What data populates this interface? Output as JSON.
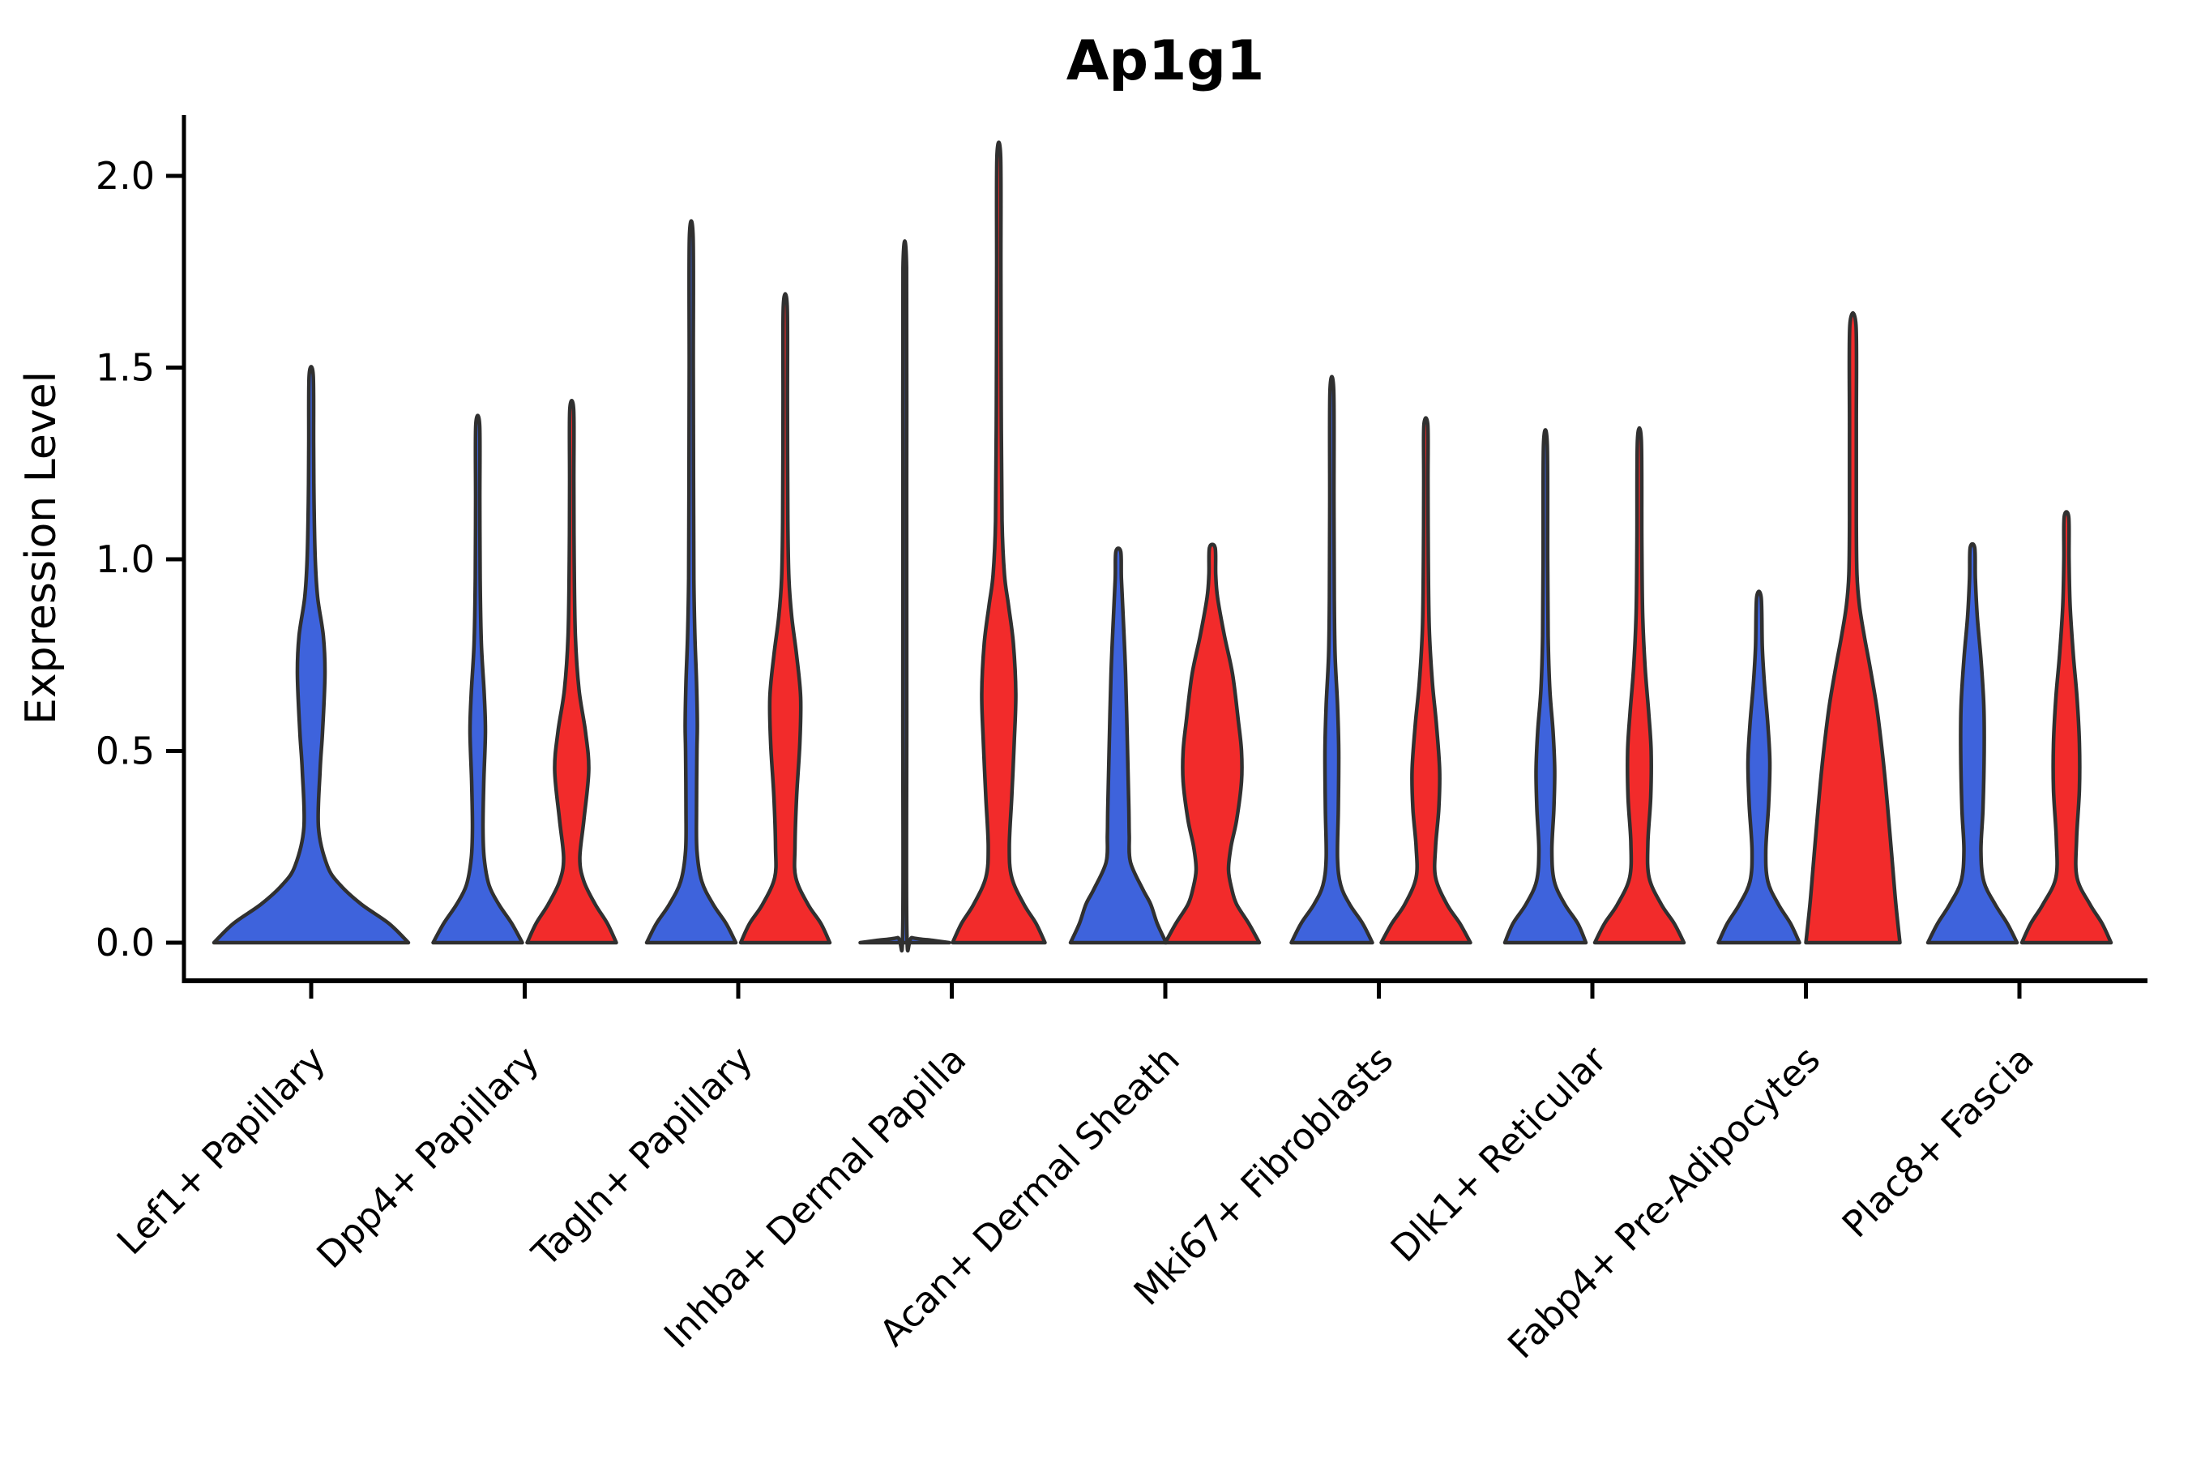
{
  "title": "Ap1g1",
  "axes": {
    "ylabel": "Expression Level"
  },
  "chart_data": {
    "type": "violin",
    "title": "Ap1g1",
    "xlabel": "",
    "ylabel": "Expression Level",
    "ylim": [
      -0.1,
      2.16
    ],
    "grid": false,
    "legend_position": "none",
    "yticks": [
      0.0,
      0.5,
      1.0,
      1.5,
      2.0
    ],
    "ytick_labels": [
      "0.0",
      "0.5",
      "1.0",
      "1.5",
      "2.0"
    ],
    "categories": [
      "Lef1+ Papillary",
      "Dpp4+ Papillary",
      "Tagln+ Papillary",
      "Inhba+ Dermal Papilla",
      "Acan+ Dermal Sheath",
      "Mki67+ Fibroblasts",
      "Dlk1+ Reticular",
      "Fabp4+ Pre-Adipocytes",
      "Plac8+ Fascia"
    ],
    "series": [
      {
        "id": "blue",
        "color": "#3E63DC"
      },
      {
        "id": "red",
        "color": "#F22B2B"
      }
    ],
    "outline_color": "#303030",
    "max_expression": {
      "blue": [
        1.48,
        1.35,
        1.84,
        1.76,
        1.02,
        1.44,
        1.3,
        0.9,
        1.03
      ],
      "red": [
        null,
        1.39,
        1.66,
        2.05,
        1.03,
        1.35,
        1.31,
        1.61,
        1.11
      ]
    },
    "violins": [
      {
        "category": 0,
        "series": "blue",
        "split": "full",
        "max": 1.48,
        "profile": [
          [
            0,
            120
          ],
          [
            0.05,
            96
          ],
          [
            0.1,
            62
          ],
          [
            0.15,
            36
          ],
          [
            0.2,
            20
          ],
          [
            0.3,
            9
          ],
          [
            0.45,
            11
          ],
          [
            0.55,
            14
          ],
          [
            0.7,
            17
          ],
          [
            0.8,
            15
          ],
          [
            0.9,
            8
          ],
          [
            1.0,
            5
          ],
          [
            1.15,
            3.5
          ],
          [
            1.3,
            3
          ],
          [
            1.48,
            2.5
          ]
        ]
      },
      {
        "category": 1,
        "series": "blue",
        "split": "pair",
        "max": 1.35,
        "profile": [
          [
            0,
            55
          ],
          [
            0.05,
            42
          ],
          [
            0.1,
            26
          ],
          [
            0.15,
            14
          ],
          [
            0.22,
            8
          ],
          [
            0.3,
            6.5
          ],
          [
            0.42,
            7.5
          ],
          [
            0.55,
            9.5
          ],
          [
            0.65,
            8
          ],
          [
            0.78,
            4.5
          ],
          [
            0.95,
            3
          ],
          [
            1.15,
            2.6
          ],
          [
            1.35,
            2.4
          ]
        ]
      },
      {
        "category": 1,
        "series": "red",
        "split": "pair",
        "max": 1.39,
        "profile": [
          [
            0,
            55
          ],
          [
            0.05,
            44
          ],
          [
            0.1,
            29
          ],
          [
            0.16,
            15
          ],
          [
            0.22,
            10
          ],
          [
            0.32,
            15
          ],
          [
            0.45,
            21
          ],
          [
            0.55,
            17
          ],
          [
            0.66,
            9
          ],
          [
            0.8,
            4.5
          ],
          [
            1.0,
            3
          ],
          [
            1.2,
            2.6
          ],
          [
            1.39,
            2.4
          ]
        ]
      },
      {
        "category": 2,
        "series": "blue",
        "split": "pair",
        "max": 1.84,
        "profile": [
          [
            0,
            55
          ],
          [
            0.05,
            43
          ],
          [
            0.1,
            27
          ],
          [
            0.16,
            13
          ],
          [
            0.24,
            7
          ],
          [
            0.35,
            6.5
          ],
          [
            0.5,
            7
          ],
          [
            0.57,
            7.5
          ],
          [
            0.68,
            6.5
          ],
          [
            0.8,
            4.5
          ],
          [
            0.95,
            3.2
          ],
          [
            1.2,
            2.8
          ],
          [
            1.5,
            2.5
          ],
          [
            1.84,
            2.3
          ]
        ]
      },
      {
        "category": 2,
        "series": "red",
        "split": "pair",
        "max": 1.66,
        "profile": [
          [
            0,
            55
          ],
          [
            0.05,
            44
          ],
          [
            0.1,
            28
          ],
          [
            0.17,
            13
          ],
          [
            0.25,
            12
          ],
          [
            0.38,
            14
          ],
          [
            0.52,
            18
          ],
          [
            0.64,
            19
          ],
          [
            0.75,
            14
          ],
          [
            0.85,
            8
          ],
          [
            0.95,
            4.5
          ],
          [
            1.1,
            3.2
          ],
          [
            1.4,
            2.7
          ],
          [
            1.66,
            2.4
          ]
        ]
      },
      {
        "category": 3,
        "series": "blue",
        "split": "pair",
        "max": 1.76,
        "profile": [
          [
            0,
            55
          ],
          [
            0.006,
            34
          ],
          [
            0.013,
            9
          ],
          [
            0.025,
            2.6
          ],
          [
            0.6,
            2.4
          ],
          [
            1.2,
            2.3
          ],
          [
            1.76,
            2.2
          ]
        ]
      },
      {
        "category": 3,
        "series": "red",
        "split": "pair",
        "max": 2.05,
        "profile": [
          [
            0,
            57
          ],
          [
            0.05,
            46
          ],
          [
            0.1,
            31
          ],
          [
            0.17,
            16
          ],
          [
            0.25,
            13
          ],
          [
            0.38,
            16
          ],
          [
            0.52,
            19
          ],
          [
            0.65,
            21
          ],
          [
            0.78,
            18
          ],
          [
            0.88,
            12
          ],
          [
            0.96,
            7
          ],
          [
            1.1,
            4
          ],
          [
            1.4,
            3
          ],
          [
            1.75,
            2.6
          ],
          [
            2.05,
            2.3
          ]
        ]
      },
      {
        "category": 4,
        "series": "blue",
        "split": "pair",
        "max": 1.02,
        "profile": [
          [
            0,
            59
          ],
          [
            0.05,
            48
          ],
          [
            0.1,
            40
          ],
          [
            0.14,
            30
          ],
          [
            0.21,
            15
          ],
          [
            0.28,
            13.5
          ],
          [
            0.35,
            13
          ],
          [
            0.49,
            11.5
          ],
          [
            0.7,
            9
          ],
          [
            0.85,
            6
          ],
          [
            0.95,
            3.8
          ],
          [
            1.02,
            3
          ]
        ]
      },
      {
        "category": 4,
        "series": "red",
        "split": "pair",
        "max": 1.03,
        "profile": [
          [
            0,
            58
          ],
          [
            0.05,
            45
          ],
          [
            0.1,
            30
          ],
          [
            0.14,
            24
          ],
          [
            0.19,
            20
          ],
          [
            0.25,
            23
          ],
          [
            0.32,
            30
          ],
          [
            0.42,
            36
          ],
          [
            0.5,
            36
          ],
          [
            0.58,
            32
          ],
          [
            0.7,
            25
          ],
          [
            0.8,
            15
          ],
          [
            0.9,
            6.5
          ],
          [
            0.96,
            4.2
          ],
          [
            1.03,
            3.5
          ]
        ]
      },
      {
        "category": 5,
        "series": "blue",
        "split": "pair",
        "max": 1.44,
        "profile": [
          [
            0,
            50
          ],
          [
            0.05,
            38
          ],
          [
            0.1,
            22
          ],
          [
            0.15,
            11
          ],
          [
            0.22,
            7
          ],
          [
            0.35,
            8
          ],
          [
            0.5,
            8.5
          ],
          [
            0.62,
            7
          ],
          [
            0.75,
            4
          ],
          [
            0.9,
            3
          ],
          [
            1.15,
            2.6
          ],
          [
            1.44,
            2.3
          ]
        ]
      },
      {
        "category": 5,
        "series": "red",
        "split": "pair",
        "max": 1.35,
        "profile": [
          [
            0,
            55
          ],
          [
            0.05,
            42
          ],
          [
            0.1,
            26
          ],
          [
            0.17,
            12
          ],
          [
            0.25,
            12
          ],
          [
            0.35,
            16
          ],
          [
            0.45,
            17
          ],
          [
            0.57,
            13
          ],
          [
            0.68,
            8
          ],
          [
            0.82,
            4.2
          ],
          [
            1.0,
            3
          ],
          [
            1.2,
            2.6
          ],
          [
            1.35,
            2.4
          ]
        ]
      },
      {
        "category": 6,
        "series": "blue",
        "split": "pair",
        "max": 1.3,
        "profile": [
          [
            0,
            50
          ],
          [
            0.05,
            40
          ],
          [
            0.1,
            24
          ],
          [
            0.16,
            11
          ],
          [
            0.24,
            8
          ],
          [
            0.35,
            10.5
          ],
          [
            0.45,
            11.5
          ],
          [
            0.55,
            9.5
          ],
          [
            0.66,
            5.5
          ],
          [
            0.8,
            3.4
          ],
          [
            1.0,
            2.8
          ],
          [
            1.3,
            2.3
          ]
        ]
      },
      {
        "category": 6,
        "series": "red",
        "split": "pair",
        "max": 1.31,
        "profile": [
          [
            0,
            55
          ],
          [
            0.05,
            43
          ],
          [
            0.1,
            27
          ],
          [
            0.17,
            12
          ],
          [
            0.26,
            10.5
          ],
          [
            0.38,
            14
          ],
          [
            0.5,
            14.5
          ],
          [
            0.6,
            11.5
          ],
          [
            0.72,
            7
          ],
          [
            0.86,
            4
          ],
          [
            1.05,
            3
          ],
          [
            1.31,
            2.4
          ]
        ]
      },
      {
        "category": 7,
        "series": "blue",
        "split": "pair",
        "max": 0.9,
        "profile": [
          [
            0,
            50
          ],
          [
            0.05,
            39
          ],
          [
            0.1,
            24
          ],
          [
            0.16,
            11
          ],
          [
            0.24,
            8.5
          ],
          [
            0.36,
            12
          ],
          [
            0.47,
            13.5
          ],
          [
            0.57,
            11
          ],
          [
            0.67,
            7
          ],
          [
            0.77,
            4.2
          ],
          [
            0.9,
            2.8
          ]
        ]
      },
      {
        "category": 7,
        "series": "red",
        "split": "pair",
        "max": 1.61,
        "profile": [
          [
            0,
            58
          ],
          [
            0.1,
            53
          ],
          [
            0.2,
            49
          ],
          [
            0.3,
            45
          ],
          [
            0.42,
            40
          ],
          [
            0.52,
            35
          ],
          [
            0.62,
            29
          ],
          [
            0.72,
            21
          ],
          [
            0.8,
            14
          ],
          [
            0.88,
            8
          ],
          [
            0.96,
            5
          ],
          [
            1.1,
            4.2
          ],
          [
            1.35,
            4.2
          ],
          [
            1.61,
            3.8
          ]
        ]
      },
      {
        "category": 8,
        "series": "blue",
        "split": "pair",
        "max": 1.03,
        "profile": [
          [
            0,
            55
          ],
          [
            0.05,
            43
          ],
          [
            0.1,
            28
          ],
          [
            0.16,
            14
          ],
          [
            0.24,
            10.5
          ],
          [
            0.35,
            13
          ],
          [
            0.5,
            14.5
          ],
          [
            0.62,
            14
          ],
          [
            0.74,
            10.5
          ],
          [
            0.85,
            6
          ],
          [
            0.95,
            3.6
          ],
          [
            1.03,
            2.8
          ]
        ]
      },
      {
        "category": 8,
        "series": "red",
        "split": "pair",
        "max": 1.11,
        "profile": [
          [
            0,
            55
          ],
          [
            0.05,
            44
          ],
          [
            0.1,
            29
          ],
          [
            0.17,
            13
          ],
          [
            0.27,
            12.5
          ],
          [
            0.4,
            16
          ],
          [
            0.52,
            16
          ],
          [
            0.64,
            13
          ],
          [
            0.75,
            8.5
          ],
          [
            0.88,
            4.5
          ],
          [
            1.0,
            3.2
          ],
          [
            1.11,
            2.8
          ]
        ]
      }
    ]
  }
}
